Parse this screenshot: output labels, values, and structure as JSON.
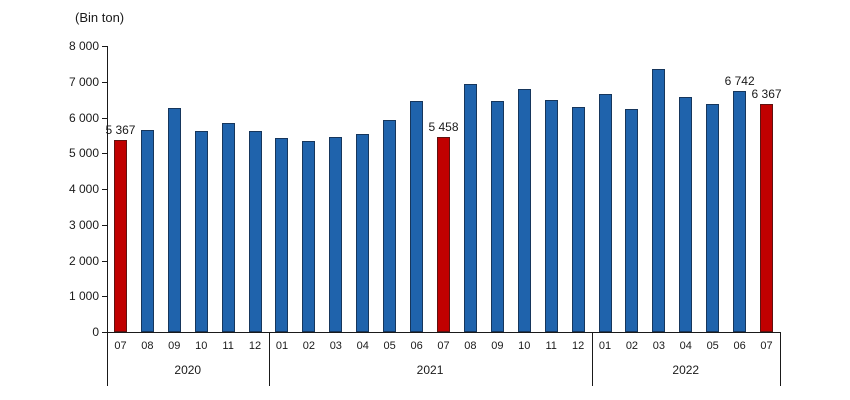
{
  "chart_data": {
    "type": "bar",
    "title": "",
    "unit_label": "(Bin ton)",
    "xlabel": "",
    "ylabel": "",
    "ylim": [
      0,
      8000
    ],
    "grid": false,
    "legend": "none",
    "yticks": [
      {
        "value": 0,
        "label": "0"
      },
      {
        "value": 1000,
        "label": "1 000"
      },
      {
        "value": 2000,
        "label": "2 000"
      },
      {
        "value": 3000,
        "label": "3 000"
      },
      {
        "value": 4000,
        "label": "4 000"
      },
      {
        "value": 5000,
        "label": "5 000"
      },
      {
        "value": 6000,
        "label": "6 000"
      },
      {
        "value": 7000,
        "label": "7 000"
      },
      {
        "value": 8000,
        "label": "8 000"
      }
    ],
    "groups": [
      {
        "year": "2020",
        "count": 6
      },
      {
        "year": "2021",
        "count": 12
      },
      {
        "year": "2022",
        "count": 7
      }
    ],
    "bars": [
      {
        "year": "2020",
        "month": "07",
        "value": 5367,
        "highlight": true,
        "annotation": "5 367"
      },
      {
        "year": "2020",
        "month": "08",
        "value": 5640,
        "highlight": false,
        "annotation": null
      },
      {
        "year": "2020",
        "month": "09",
        "value": 6270,
        "highlight": false,
        "annotation": null
      },
      {
        "year": "2020",
        "month": "10",
        "value": 5620,
        "highlight": false,
        "annotation": null
      },
      {
        "year": "2020",
        "month": "11",
        "value": 5850,
        "highlight": false,
        "annotation": null
      },
      {
        "year": "2020",
        "month": "12",
        "value": 5620,
        "highlight": false,
        "annotation": null
      },
      {
        "year": "2021",
        "month": "01",
        "value": 5430,
        "highlight": false,
        "annotation": null
      },
      {
        "year": "2021",
        "month": "02",
        "value": 5340,
        "highlight": false,
        "annotation": null
      },
      {
        "year": "2021",
        "month": "03",
        "value": 5450,
        "highlight": false,
        "annotation": null
      },
      {
        "year": "2021",
        "month": "04",
        "value": 5530,
        "highlight": false,
        "annotation": null
      },
      {
        "year": "2021",
        "month": "05",
        "value": 5920,
        "highlight": false,
        "annotation": null
      },
      {
        "year": "2021",
        "month": "06",
        "value": 6460,
        "highlight": false,
        "annotation": null
      },
      {
        "year": "2021",
        "month": "07",
        "value": 5458,
        "highlight": true,
        "annotation": "5 458"
      },
      {
        "year": "2021",
        "month": "08",
        "value": 6950,
        "highlight": false,
        "annotation": null
      },
      {
        "year": "2021",
        "month": "09",
        "value": 6450,
        "highlight": false,
        "annotation": null
      },
      {
        "year": "2021",
        "month": "10",
        "value": 6810,
        "highlight": false,
        "annotation": null
      },
      {
        "year": "2021",
        "month": "11",
        "value": 6480,
        "highlight": false,
        "annotation": null
      },
      {
        "year": "2021",
        "month": "12",
        "value": 6280,
        "highlight": false,
        "annotation": null
      },
      {
        "year": "2022",
        "month": "01",
        "value": 6650,
        "highlight": false,
        "annotation": null
      },
      {
        "year": "2022",
        "month": "02",
        "value": 6230,
        "highlight": false,
        "annotation": null
      },
      {
        "year": "2022",
        "month": "03",
        "value": 7350,
        "highlight": false,
        "annotation": null
      },
      {
        "year": "2022",
        "month": "04",
        "value": 6580,
        "highlight": false,
        "annotation": null
      },
      {
        "year": "2022",
        "month": "05",
        "value": 6390,
        "highlight": false,
        "annotation": null
      },
      {
        "year": "2022",
        "month": "06",
        "value": 6742,
        "highlight": false,
        "annotation": "6 742"
      },
      {
        "year": "2022",
        "month": "07",
        "value": 6367,
        "highlight": true,
        "annotation": "6 367"
      }
    ],
    "colors": {
      "bar_blue": "#1f63ac",
      "bar_blue_border": "#16365c",
      "bar_red": "#c00000",
      "bar_red_border": "#5f1210",
      "axis": "#1a1a1a"
    }
  }
}
